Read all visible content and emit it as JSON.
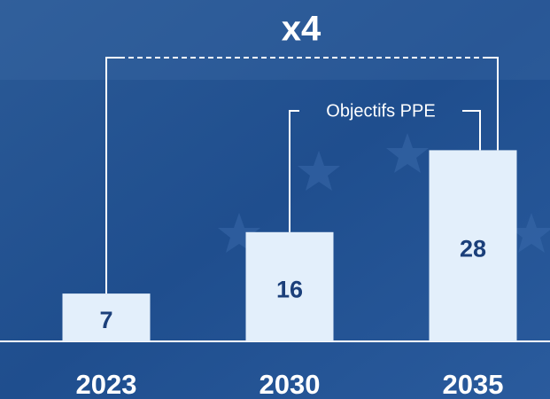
{
  "chart_data": {
    "type": "bar",
    "title": "x4",
    "annotation": "Objectifs PPE",
    "categories": [
      "2023",
      "2030",
      "2035"
    ],
    "values": [
      7,
      16,
      28
    ],
    "color": "#e3effb",
    "label_color": "#1b3f7a"
  }
}
